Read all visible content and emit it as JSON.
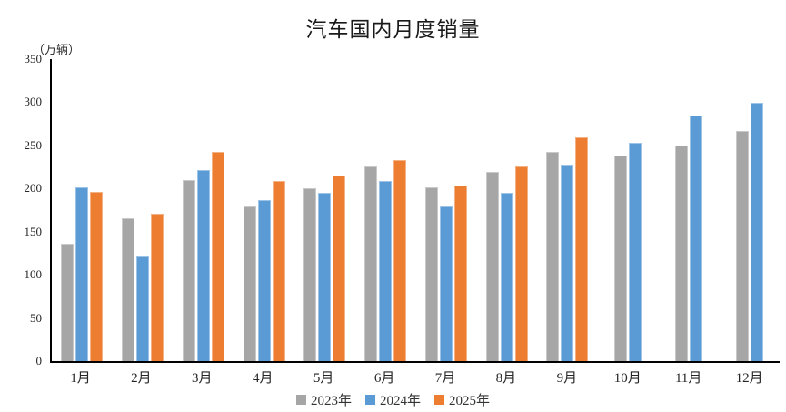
{
  "chart_title": "汽车国内月度销量",
  "unit_label": "（万辆）",
  "chart_data": {
    "type": "bar",
    "title": "汽车国内月度销量",
    "ylabel": "（万辆）",
    "xlabel": "",
    "categories": [
      "1月",
      "2月",
      "3月",
      "4月",
      "5月",
      "6月",
      "7月",
      "8月",
      "9月",
      "10月",
      "11月",
      "12月"
    ],
    "series": [
      {
        "name": "2023年",
        "color": "#A6A6A6",
        "edge_color": "#C9C9C9",
        "values": [
          136,
          166,
          210,
          179,
          200,
          226,
          201,
          219,
          242,
          238,
          250,
          267
        ]
      },
      {
        "name": "2024年",
        "color": "#5B9BD5",
        "edge_color": "#9DC3E6",
        "values": [
          201,
          121,
          221,
          187,
          195,
          209,
          179,
          195,
          228,
          253,
          285,
          299
        ]
      },
      {
        "name": "2025年",
        "color": "#ED7D31",
        "edge_color": "#F4B183",
        "values": [
          196,
          171,
          242,
          209,
          215,
          233,
          203,
          226,
          259,
          null,
          null,
          null
        ]
      }
    ],
    "ylim": [
      0,
      350
    ],
    "yticks": [
      0,
      50,
      100,
      150,
      200,
      250,
      300,
      350
    ],
    "grid": false,
    "legend_position": "bottom"
  }
}
